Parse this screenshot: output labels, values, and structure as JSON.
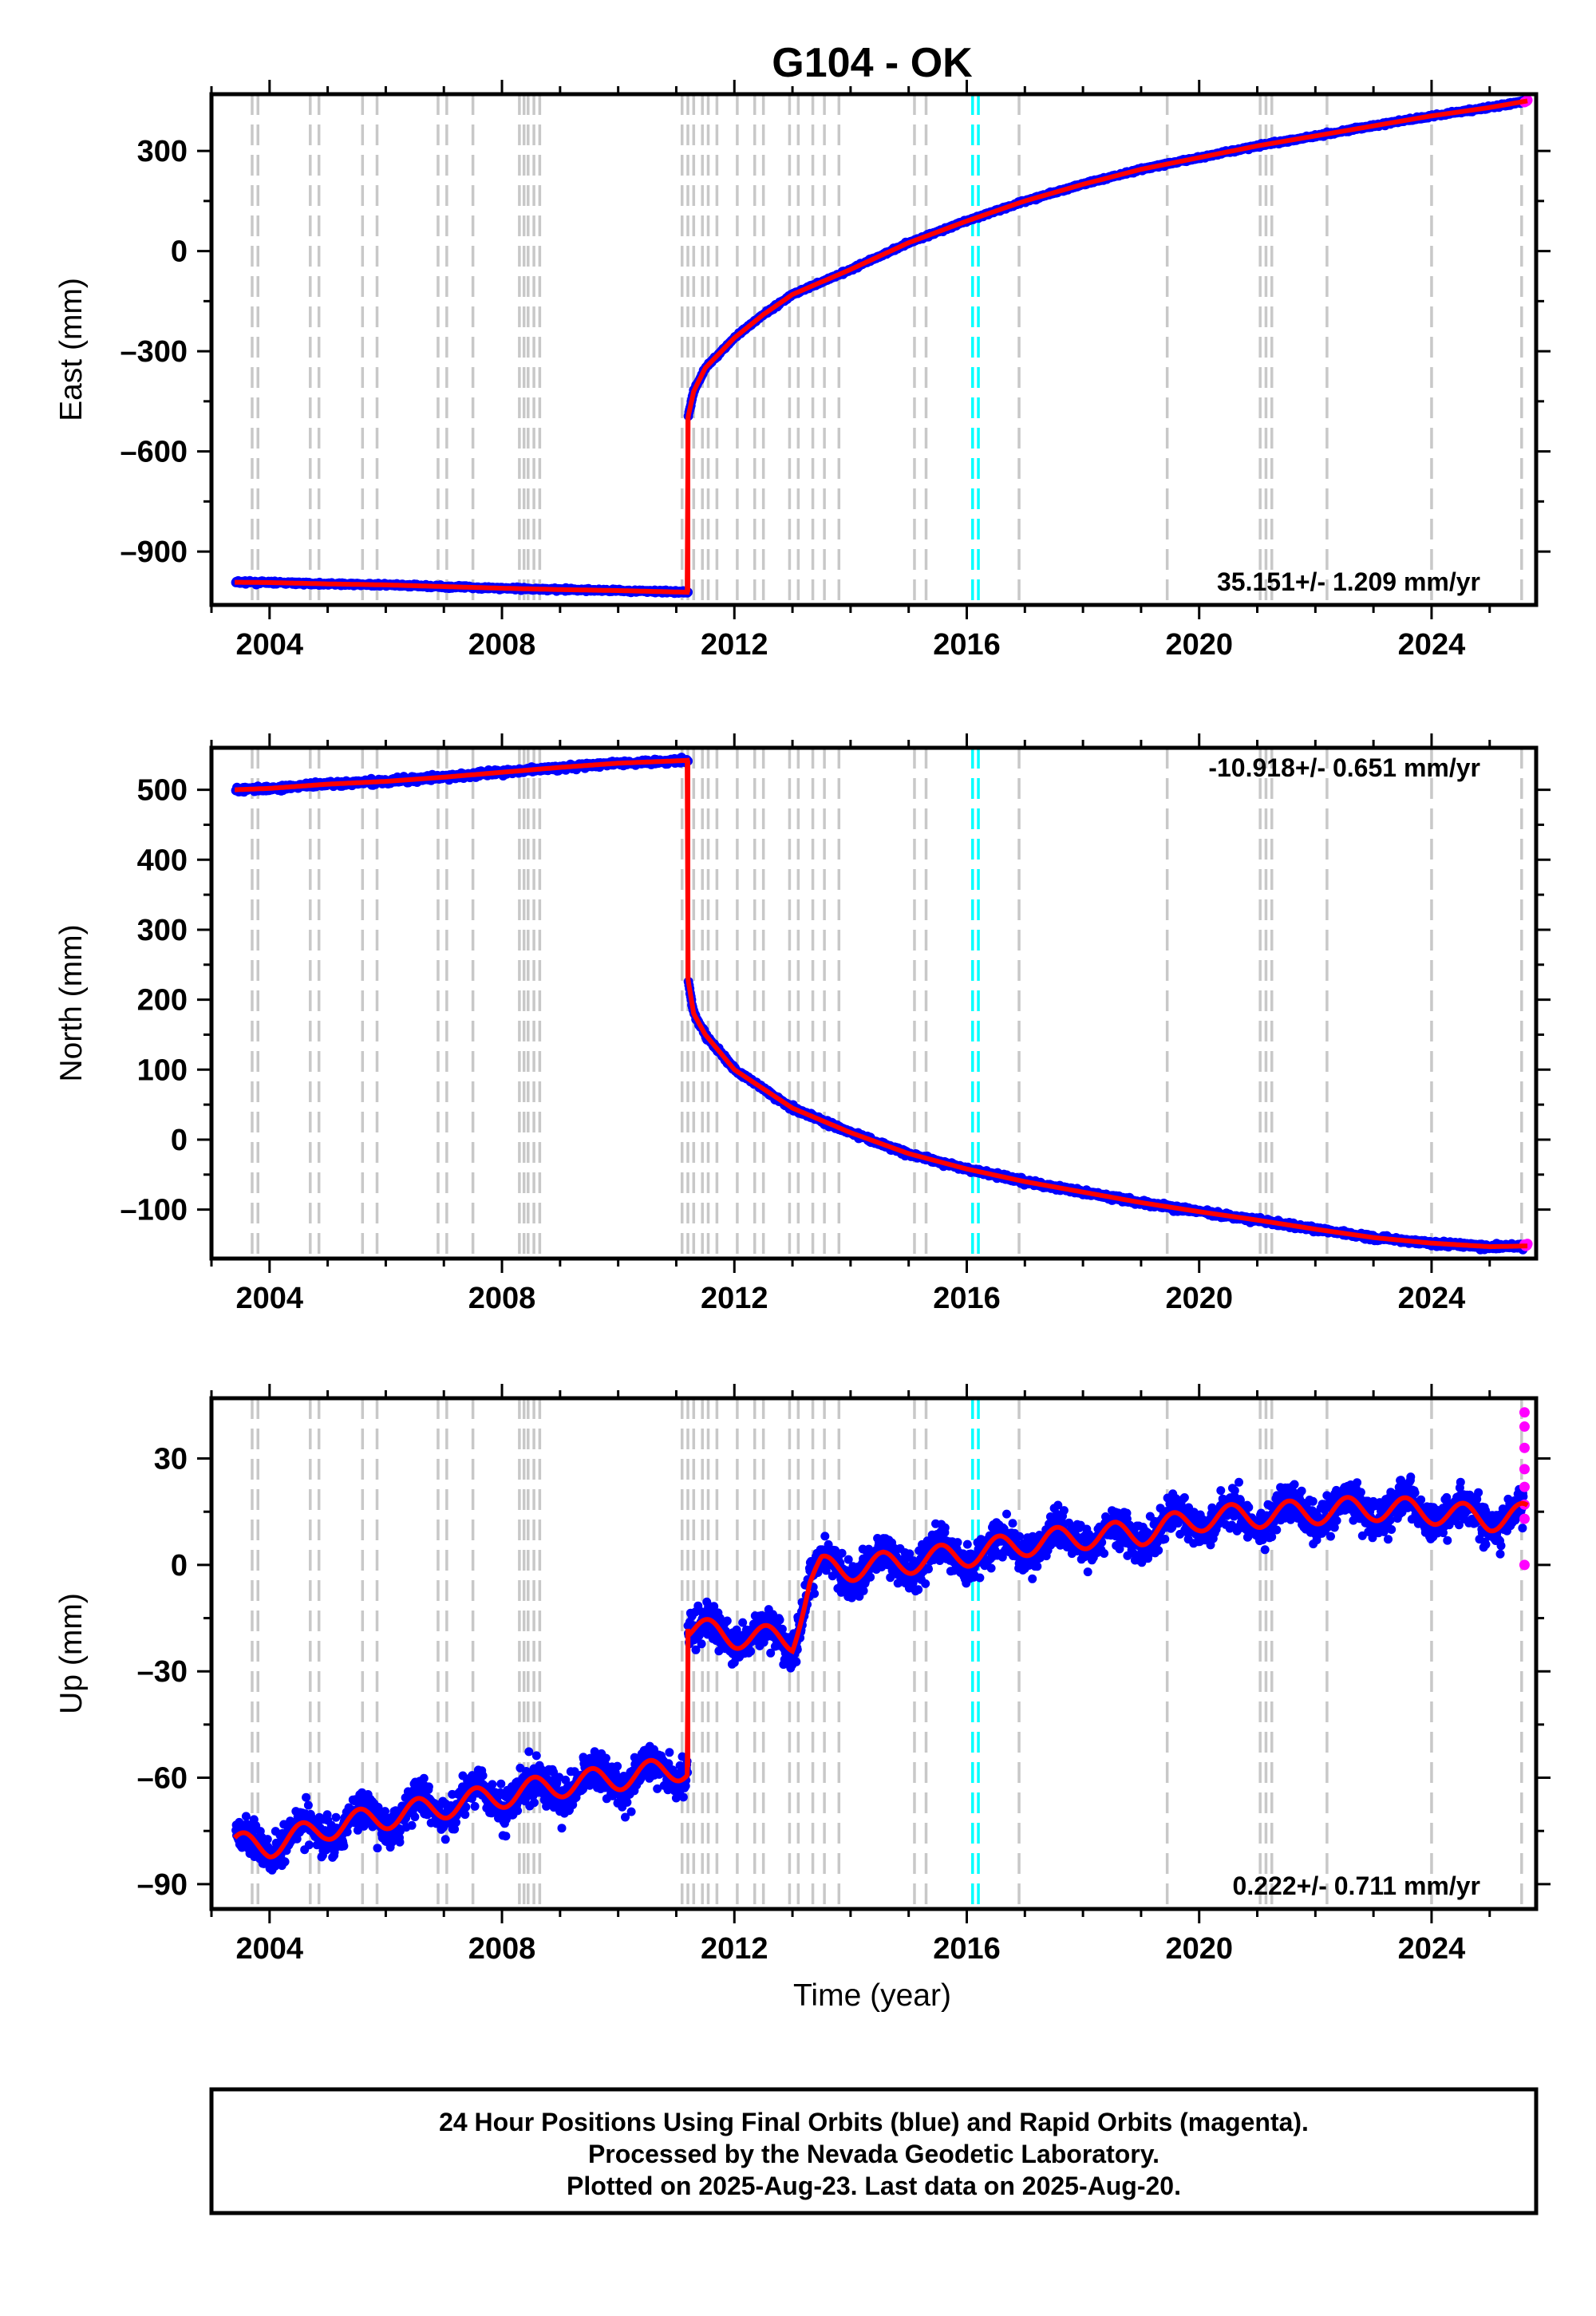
{
  "chart_data": {
    "type": "scatter",
    "title": "G104 - OK",
    "xlabel": "Time (year)",
    "xlim": [
      2003.0,
      2025.8
    ],
    "x_ticks": [
      2004,
      2008,
      2012,
      2016,
      2020,
      2024
    ],
    "x_tick_labels": [
      "2004",
      "2008",
      "2012",
      "2016",
      "2020",
      "2024"
    ],
    "equipment_change_lines": [
      2003.7,
      2003.8,
      2004.7,
      2004.85,
      2005.6,
      2005.85,
      2006.9,
      2007.05,
      2007.5,
      2008.3,
      2008.38,
      2008.45,
      2008.55,
      2008.65,
      2011.1,
      2011.2,
      2011.3,
      2011.45,
      2011.55,
      2011.7,
      2012.05,
      2012.35,
      2012.5,
      2012.95,
      2013.1,
      2013.35,
      2013.55,
      2013.8,
      2015.1,
      2015.3,
      2016.9,
      2019.45,
      2021.05,
      2021.15,
      2021.25,
      2022.2,
      2024.0,
      2025.55
    ],
    "earthquake_lines": [
      2016.1,
      2016.2
    ],
    "footer_lines": [
      "24 Hour Positions Using Final Orbits (blue) and Rapid Orbits (magenta).",
      "Processed by the Nevada Geodetic Laboratory.",
      "Plotted on 2025-Aug-23. Last data on 2025-Aug-20."
    ],
    "colors": {
      "final": "#0000ff",
      "rapid": "#ff00ff",
      "model": "#ff0000",
      "equipment": "#c8c8c8",
      "earthquake": "#00ffff"
    },
    "panels": [
      {
        "name": "east",
        "ylabel": "East (mm)",
        "ylim": [
          -1060,
          470
        ],
        "y_ticks": [
          -900,
          -600,
          -300,
          0,
          300
        ],
        "y_tick_labels": [
          "–900",
          "–600",
          "–300",
          "0",
          "300"
        ],
        "rate": "35.151+/- 1.209 mm/yr",
        "rate_position": "bottom-right",
        "noise_mm": 3,
        "model": {
          "x": [
            2003.4,
            2004.0,
            2005.0,
            2006.0,
            2007.0,
            2008.0,
            2009.0,
            2010.0,
            2011.2,
            2011.2,
            2011.3,
            2011.5,
            2012.0,
            2012.5,
            2013.0,
            2014.0,
            2015.0,
            2016.0,
            2017.0,
            2018.0,
            2019.0,
            2020.0,
            2021.0,
            2022.0,
            2023.0,
            2024.0,
            2025.0,
            2025.65
          ],
          "y": [
            -992,
            -993,
            -997,
            -1000,
            -1005,
            -1010,
            -1014,
            -1017,
            -1022,
            -500,
            -420,
            -350,
            -260,
            -190,
            -130,
            -55,
            25,
            90,
            150,
            200,
            245,
            280,
            315,
            345,
            375,
            405,
            430,
            450
          ]
        },
        "rapid": {
          "x": [
            2025.6,
            2025.62,
            2025.64,
            2025.65
          ],
          "y": [
            446,
            448,
            450,
            452
          ]
        }
      },
      {
        "name": "north",
        "ylabel": "North (mm)",
        "ylim": [
          -170,
          560
        ],
        "y_ticks": [
          -100,
          0,
          100,
          200,
          300,
          400,
          500
        ],
        "y_tick_labels": [
          "–100",
          "0",
          "100",
          "200",
          "300",
          "400",
          "500"
        ],
        "rate": "-10.918+/- 0.651 mm/yr",
        "rate_position": "top-right",
        "noise_mm": 3,
        "model": {
          "x": [
            2003.4,
            2004.0,
            2005.0,
            2006.0,
            2007.0,
            2008.0,
            2009.0,
            2010.0,
            2011.2,
            2011.2,
            2011.3,
            2011.5,
            2012.0,
            2013.0,
            2014.0,
            2015.0,
            2016.0,
            2017.0,
            2018.0,
            2019.0,
            2020.0,
            2021.0,
            2022.0,
            2023.0,
            2024.0,
            2025.0,
            2025.65
          ],
          "y": [
            500,
            502,
            508,
            512,
            518,
            525,
            532,
            538,
            542,
            230,
            180,
            150,
            100,
            45,
            10,
            -20,
            -42,
            -60,
            -75,
            -90,
            -103,
            -115,
            -128,
            -140,
            -148,
            -153,
            -152
          ]
        },
        "rapid": {
          "x": [
            2025.6,
            2025.62,
            2025.64,
            2025.65
          ],
          "y": [
            -150,
            -152,
            -151,
            -149
          ]
        }
      },
      {
        "name": "up",
        "ylabel": "Up (mm)",
        "ylim": [
          -97,
          47
        ],
        "y_ticks": [
          -90,
          -60,
          -30,
          0,
          30
        ],
        "y_tick_labels": [
          "–90",
          "–60",
          "–30",
          "0",
          "30"
        ],
        "rate": "0.222+/- 0.711 mm/yr",
        "rate_position": "bottom-right",
        "noise_mm": 4.5,
        "seasonal_amp_mm": 3.5,
        "model": {
          "x": [
            2003.4,
            2004.0,
            2005.0,
            2006.0,
            2007.0,
            2008.0,
            2009.0,
            2010.0,
            2011.2,
            2011.2,
            2012.0,
            2013.0,
            2013.3,
            2013.5,
            2014.0,
            2015.0,
            2016.0,
            2017.0,
            2018.0,
            2019.0,
            2020.0,
            2021.0,
            2022.0,
            2023.0,
            2024.0,
            2025.0,
            2025.65
          ],
          "y": [
            -79,
            -79,
            -74,
            -71,
            -68,
            -65,
            -62,
            -60,
            -57,
            -18,
            -20,
            -21,
            -5,
            -1,
            -1,
            1,
            3,
            6,
            8,
            9,
            13,
            14,
            15,
            16,
            15,
            13,
            14
          ]
        },
        "rapid": {
          "x": [
            2025.6,
            2025.6,
            2025.6,
            2025.6,
            2025.6,
            2025.6,
            2025.6,
            2025.6
          ],
          "y": [
            43,
            39,
            33,
            27,
            22,
            17,
            13,
            0
          ]
        }
      }
    ]
  }
}
